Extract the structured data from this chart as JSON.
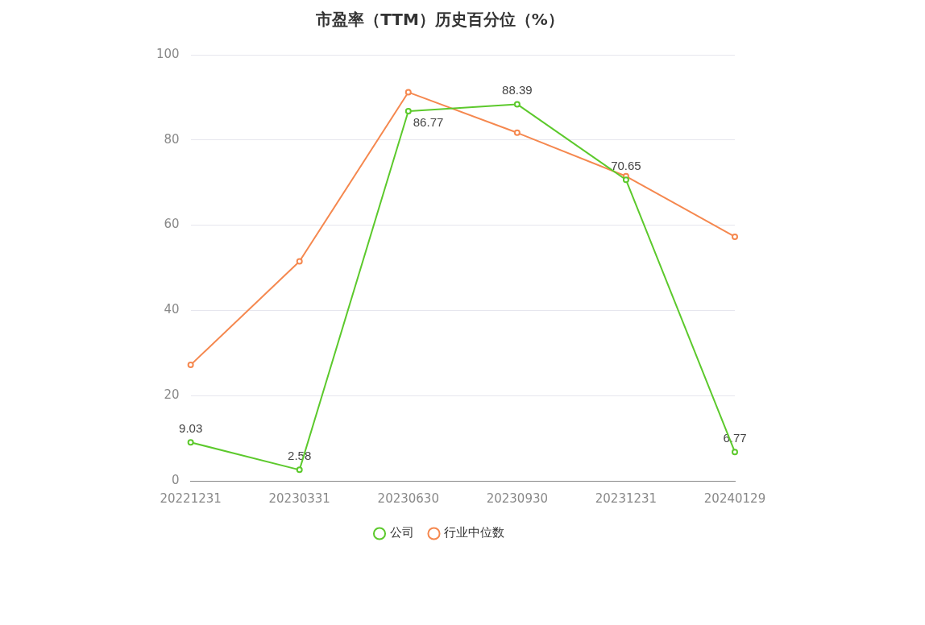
{
  "chart_data": {
    "type": "line",
    "title": "市盈率（TTM）历史百分位（%）",
    "categories": [
      "20221231",
      "20230331",
      "20230630",
      "20230930",
      "20231231",
      "20240129"
    ],
    "series": [
      {
        "name": "公司",
        "color": "#5cc92c",
        "values": [
          9.03,
          2.58,
          86.77,
          88.39,
          70.65,
          6.77
        ],
        "value_labels": [
          "9.03",
          "2.58",
          "86.77",
          "88.39",
          "70.65",
          "6.77"
        ]
      },
      {
        "name": "行业中位数",
        "color": "#f5884f",
        "values": [
          27.2,
          51.5,
          91.2,
          81.7,
          71.5,
          57.3
        ]
      }
    ],
    "ylim": [
      0,
      100
    ],
    "yticks": [
      0,
      20,
      40,
      60,
      80,
      100
    ],
    "grid": "y",
    "legend": "bottom",
    "marker": "circle",
    "line_style": "solid"
  }
}
